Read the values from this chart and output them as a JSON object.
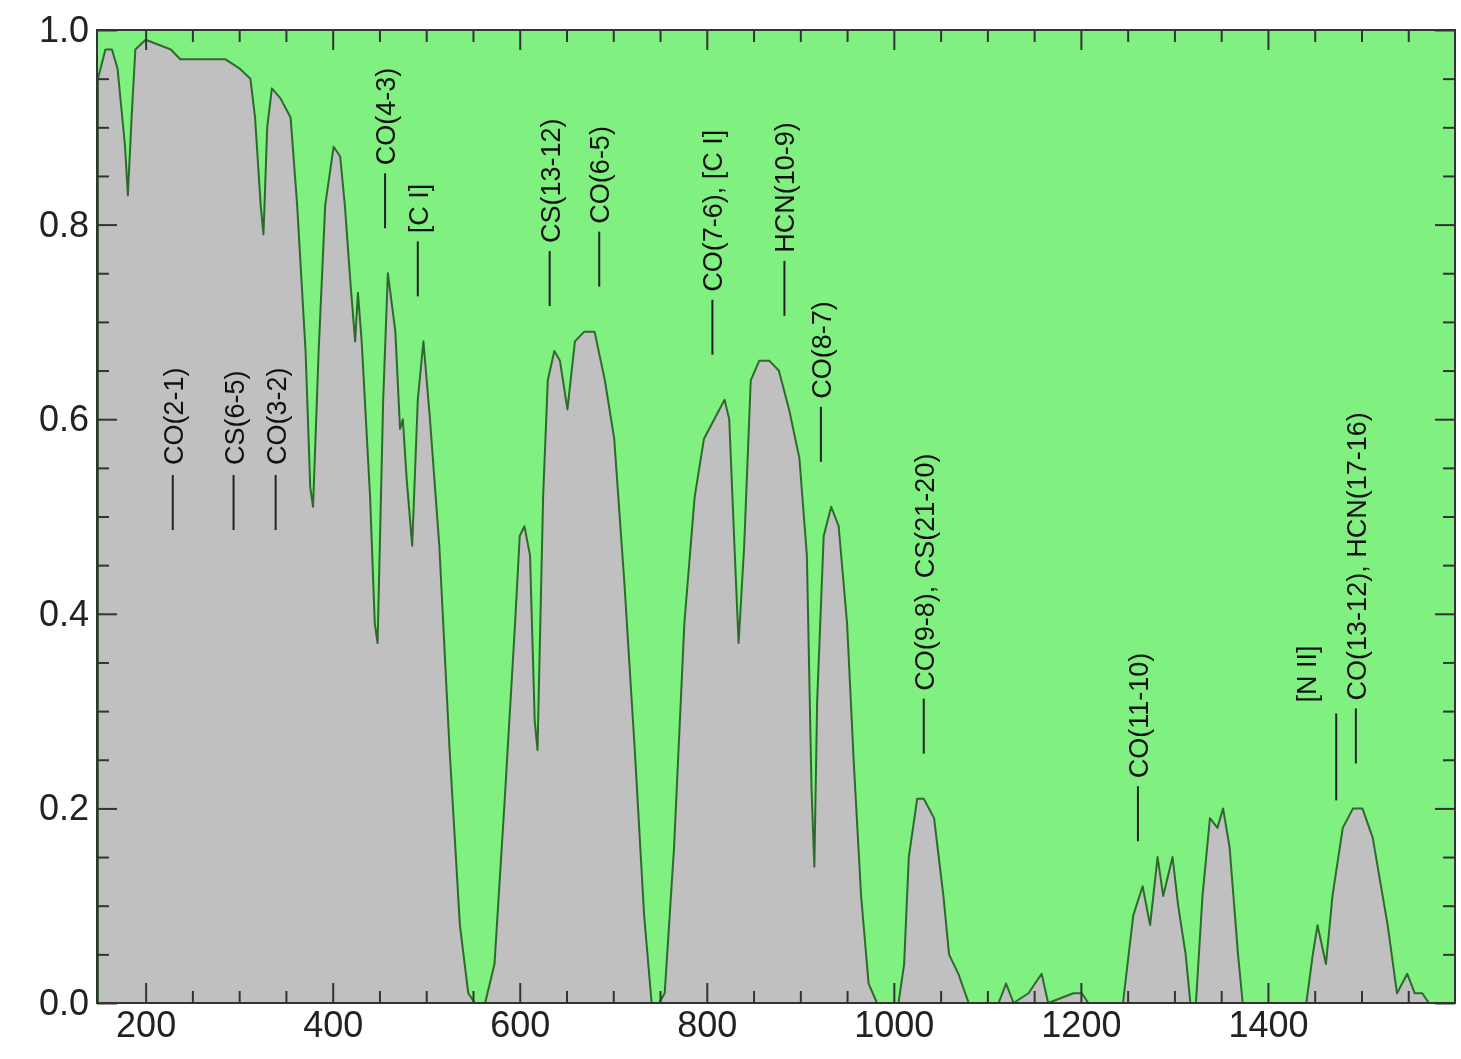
{
  "chart_data": {
    "type": "area",
    "x": [
      149,
      157,
      164,
      170,
      178,
      181,
      185,
      189,
      200,
      227,
      237,
      259,
      275,
      285,
      301,
      312,
      317,
      323,
      326,
      330,
      335,
      344,
      355,
      362,
      371,
      376,
      379,
      385,
      392,
      401,
      408,
      413,
      419,
      424,
      427,
      431,
      440,
      445,
      448,
      454,
      459,
      467,
      472,
      475,
      479,
      485,
      491,
      497,
      504,
      514,
      525,
      536,
      545,
      552,
      563,
      573,
      584,
      595,
      600,
      605,
      611,
      616,
      619,
      625,
      630,
      637,
      643,
      651,
      659,
      669,
      680,
      691,
      701,
      712,
      723,
      733,
      741,
      749,
      755,
      765,
      776,
      787,
      797,
      808,
      819,
      824,
      830,
      834,
      840,
      847,
      856,
      867,
      877,
      888,
      899,
      907,
      912,
      915,
      918,
      925,
      933,
      941,
      950,
      957,
      965,
      973,
      982,
      993,
      1005,
      1011,
      1016,
      1025,
      1032,
      1043,
      1053,
      1059,
      1069,
      1080,
      1112,
      1120,
      1128,
      1144,
      1158,
      1165,
      1192,
      1201,
      1208,
      1245,
      1256,
      1266,
      1274,
      1282,
      1288,
      1293,
      1298,
      1304,
      1312,
      1317,
      1323,
      1330,
      1338,
      1346,
      1352,
      1359,
      1368,
      1373,
      1441,
      1448,
      1453,
      1462,
      1469,
      1480,
      1491,
      1501,
      1512,
      1528,
      1538,
      1549,
      1557,
      1565,
      1572
    ],
    "series": [
      {
        "color": "#c0c0c0",
        "values": [
          0.95,
          0.98,
          0.98,
          0.96,
          0.88,
          0.83,
          0.91,
          0.98,
          0.99,
          0.98,
          0.97,
          0.97,
          0.97,
          0.97,
          0.96,
          0.95,
          0.91,
          0.82,
          0.79,
          0.9,
          0.94,
          0.93,
          0.91,
          0.82,
          0.67,
          0.53,
          0.51,
          0.67,
          0.82,
          0.88,
          0.87,
          0.82,
          0.74,
          0.68,
          0.73,
          0.68,
          0.52,
          0.39,
          0.37,
          0.62,
          0.75,
          0.69,
          0.59,
          0.6,
          0.54,
          0.47,
          0.62,
          0.68,
          0.6,
          0.47,
          0.26,
          0.08,
          0.01,
          0,
          0,
          0.04,
          0.21,
          0.39,
          0.48,
          0.49,
          0.46,
          0.29,
          0.26,
          0.52,
          0.64,
          0.67,
          0.66,
          0.61,
          0.68,
          0.69,
          0.69,
          0.64,
          0.58,
          0.43,
          0.26,
          0.09,
          0,
          0,
          0.01,
          0.16,
          0.39,
          0.52,
          0.58,
          0.6,
          0.62,
          0.6,
          0.46,
          0.37,
          0.47,
          0.64,
          0.66,
          0.66,
          0.65,
          0.61,
          0.56,
          0.46,
          0.22,
          0.14,
          0.31,
          0.48,
          0.51,
          0.49,
          0.39,
          0.25,
          0.11,
          0.02,
          0,
          0,
          0,
          0.04,
          0.15,
          0.21,
          0.21,
          0.19,
          0.11,
          0.05,
          0.03,
          0,
          0,
          0.02,
          0,
          0.01,
          0.03,
          0,
          0.01,
          0.01,
          0,
          0,
          0.09,
          0.12,
          0.08,
          0.15,
          0.11,
          0.13,
          0.15,
          0.1,
          0.05,
          0,
          0,
          0.11,
          0.19,
          0.18,
          0.2,
          0.16,
          0.05,
          0,
          0,
          0.05,
          0.08,
          0.04,
          0.11,
          0.18,
          0.2,
          0.2,
          0.17,
          0.08,
          0.01,
          0.03,
          0.01,
          0.01,
          0
        ]
      }
    ],
    "xlim": [
      148,
      1600
    ],
    "ylim": [
      0,
      1
    ],
    "xticks": [
      200,
      {
        "value": 250,
        "label": null
      },
      {
        "value": 300,
        "label": null
      },
      {
        "value": 350,
        "label": null
      },
      400,
      {
        "value": 450,
        "label": null
      },
      {
        "value": 500,
        "label": null
      },
      {
        "value": 550,
        "label": null
      },
      600,
      {
        "value": 650,
        "label": null
      },
      {
        "value": 700,
        "label": null
      },
      {
        "value": 750,
        "label": null
      },
      800,
      {
        "value": 850,
        "label": null
      },
      {
        "value": 900,
        "label": null
      },
      {
        "value": 950,
        "label": null
      },
      1000,
      {
        "value": 1050,
        "label": null
      },
      {
        "value": 1100,
        "label": null
      },
      {
        "value": 1150,
        "label": null
      },
      1200,
      {
        "value": 1250,
        "label": null
      },
      {
        "value": 1300,
        "label": null
      },
      {
        "value": 1350,
        "label": null
      },
      1400,
      {
        "value": 1450,
        "label": null
      },
      {
        "value": 1500,
        "label": null
      },
      {
        "value": 1550,
        "label": null
      }
    ],
    "yticks": [
      {
        "value": 0,
        "label": "0.0"
      },
      {
        "value": 0.05,
        "label": null
      },
      {
        "value": 0.1,
        "label": null
      },
      {
        "value": 0.15,
        "label": null
      },
      0.2,
      {
        "value": 0.25,
        "label": null
      },
      {
        "value": 0.3,
        "label": null
      },
      {
        "value": 0.35,
        "label": null
      },
      0.4,
      {
        "value": 0.45,
        "label": null
      },
      {
        "value": 0.5,
        "label": null
      },
      {
        "value": 0.55,
        "label": null
      },
      0.6,
      {
        "value": 0.65,
        "label": null
      },
      {
        "value": 0.7,
        "label": null
      },
      {
        "value": 0.75,
        "label": null
      },
      0.8,
      {
        "value": 0.85,
        "label": null
      },
      {
        "value": 0.9,
        "label": null
      },
      {
        "value": 0.95,
        "label": null
      },
      {
        "value": 1,
        "label": "1.0"
      }
    ],
    "grid": false,
    "ref_lines": [
      {
        "axis": "x",
        "value": 229,
        "label": "CO(2-1)"
      },
      {
        "axis": "x",
        "value": 294,
        "label": "CS(6-5)"
      },
      {
        "axis": "x",
        "value": 339,
        "label": "CO(3-2)"
      },
      {
        "axis": "x",
        "value": 456,
        "label": "CO(4-3)"
      },
      {
        "axis": "x",
        "value": 491,
        "label": "[C I]"
      },
      {
        "axis": "x",
        "value": 632,
        "label": "CS(13-12)"
      },
      {
        "axis": "x",
        "value": 685,
        "label": "CO(6-5)"
      },
      {
        "axis": "x",
        "value": 806,
        "label": "CO(7-6), [C I]"
      },
      {
        "axis": "x",
        "value": 883,
        "label": "HCN(10-9)"
      },
      {
        "axis": "x",
        "value": 922,
        "label": "CO(8-7)"
      },
      {
        "axis": "x",
        "value": 1032,
        "label": "CO(9-8), CS(21-20)"
      },
      {
        "axis": "x",
        "value": 1261,
        "label": "CO(11-10)"
      },
      {
        "axis": "x",
        "value": 1473,
        "label": "[N II]"
      },
      {
        "axis": "x",
        "value": 1494,
        "label": "CO(13-12), HCN(17-16)"
      }
    ]
  }
}
